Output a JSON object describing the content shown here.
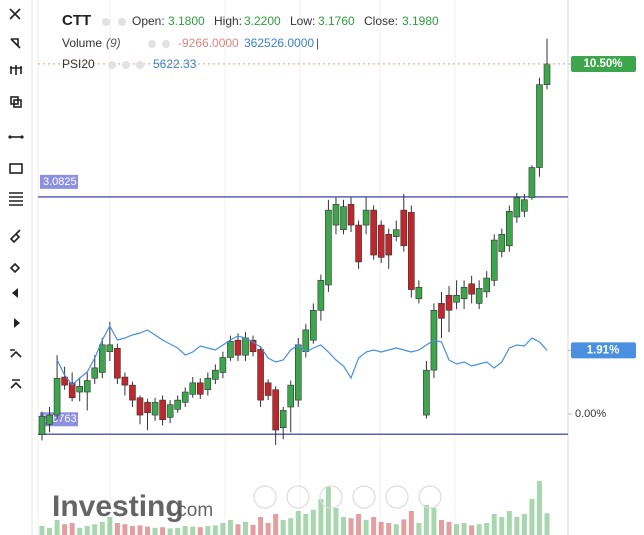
{
  "chart_data": {
    "type": "candlestick",
    "ylim": [
      2.867,
      3.2535
    ],
    "y2lim": [
      -0.93,
      12.42
    ],
    "y2ticks": [
      {
        "value": 10.5,
        "label": "10.50%"
      },
      {
        "value": 1.91,
        "label": "1.91%"
      },
      {
        "value": 0,
        "label": "0.00%"
      }
    ],
    "y3lim": [
      0,
      1000000
    ],
    "hlines": [
      3.0825,
      2.8763
    ],
    "hline_color": "#5b5fb8",
    "up_color": "#3da54c",
    "down_color": "#c0272d",
    "legend": {
      "ohlc": [
        {
          "label": "Open:",
          "value": "3.1800"
        },
        {
          "label": "High:",
          "value": "3.2200"
        },
        {
          "label": "Low:",
          "value": "3.1760"
        },
        {
          "label": "Close:",
          "value": "3.1980"
        }
      ],
      "volume_period": "(9)",
      "volume_values": [
        "-9266.0000",
        "362526.0000",
        "|"
      ],
      "psi_value": "5622.33"
    },
    "watermark": {
      "brand": "Investing",
      "suffix": ".com"
    },
    "series": [
      {
        "name": "CTT",
        "type": "candlestick",
        "open": [
          2.876,
          2.885,
          2.893,
          2.926,
          2.921,
          2.913,
          2.913,
          2.925,
          2.93,
          2.948,
          2.951,
          2.926,
          2.919,
          2.908,
          2.904,
          2.893,
          2.906,
          2.891,
          2.898,
          2.904,
          2.911,
          2.921,
          2.915,
          2.924,
          2.93,
          2.943,
          2.958,
          2.945,
          2.958,
          2.95,
          2.921,
          2.915,
          2.882,
          2.9,
          2.906,
          2.948,
          2.958,
          2.984,
          3.006,
          3.058,
          3.054,
          3.076,
          3.058,
          3.058,
          3.071,
          3.058,
          3.05,
          3.048,
          3.071,
          3.069,
          2.994,
          2.893,
          2.932,
          2.99,
          2.997,
          2.991,
          2.994,
          3.007,
          2.99,
          3.0,
          3.01,
          3.035,
          3.04,
          3.065,
          3.07,
          3.082,
          3.108,
          3.18
        ],
        "high": [
          2.896,
          2.9,
          2.945,
          2.935,
          2.93,
          2.925,
          2.93,
          2.945,
          2.96,
          2.974,
          2.955,
          2.93,
          2.922,
          2.91,
          2.907,
          2.908,
          2.91,
          2.906,
          2.91,
          2.917,
          2.926,
          2.925,
          2.93,
          2.937,
          2.948,
          2.962,
          2.964,
          2.965,
          2.962,
          2.953,
          2.924,
          2.918,
          2.9,
          2.923,
          2.96,
          2.972,
          2.99,
          3.015,
          3.08,
          3.082,
          3.08,
          3.082,
          3.062,
          3.082,
          3.075,
          3.062,
          3.055,
          3.062,
          3.085,
          3.075,
          3.01,
          2.94,
          2.99,
          3.0,
          3.005,
          3.01,
          3.01,
          3.014,
          3.01,
          3.018,
          3.05,
          3.055,
          3.075,
          3.086,
          3.085,
          3.11,
          3.186,
          3.22
        ],
        "low": [
          2.871,
          2.878,
          2.889,
          2.915,
          2.905,
          2.905,
          2.897,
          2.92,
          2.925,
          2.94,
          2.92,
          2.91,
          2.9,
          2.885,
          2.88,
          2.888,
          2.884,
          2.886,
          2.895,
          2.9,
          2.908,
          2.907,
          2.91,
          2.92,
          2.925,
          2.94,
          2.94,
          2.94,
          2.944,
          2.9,
          2.906,
          2.867,
          2.872,
          2.878,
          2.9,
          2.943,
          2.955,
          2.975,
          3.0,
          3.05,
          3.05,
          3.052,
          3.02,
          3.05,
          3.028,
          3.025,
          3.02,
          3.044,
          3.035,
          2.995,
          2.99,
          2.89,
          2.925,
          2.96,
          2.965,
          2.985,
          2.985,
          2.99,
          2.985,
          2.995,
          3.005,
          3.03,
          3.035,
          3.06,
          3.065,
          3.08,
          3.1,
          3.176
        ],
        "close": [
          2.892,
          2.893,
          2.925,
          2.919,
          2.908,
          2.918,
          2.923,
          2.934,
          2.954,
          2.954,
          2.925,
          2.919,
          2.906,
          2.893,
          2.895,
          2.904,
          2.889,
          2.902,
          2.906,
          2.913,
          2.921,
          2.911,
          2.925,
          2.932,
          2.943,
          2.957,
          2.945,
          2.96,
          2.948,
          2.906,
          2.91,
          2.88,
          2.897,
          2.919,
          2.954,
          2.967,
          2.984,
          3.01,
          3.071,
          3.076,
          3.074,
          3.058,
          3.026,
          3.071,
          3.032,
          3.03,
          3.032,
          3.054,
          3.04,
          3.002,
          3.004,
          2.932,
          2.984,
          2.977,
          2.984,
          2.997,
          3.004,
          2.998,
          3.003,
          3.012,
          3.045,
          3.05,
          3.07,
          3.082,
          3.08,
          3.108,
          3.18,
          3.198
        ]
      },
      {
        "name": "Volume",
        "type": "volume",
        "axis": "y3",
        "values": [
          150000,
          120000,
          250000,
          180000,
          200000,
          120000,
          150000,
          180000,
          220000,
          300000,
          200000,
          180000,
          150000,
          160000,
          140000,
          120000,
          130000,
          110000,
          120000,
          150000,
          140000,
          130000,
          150000,
          160000,
          200000,
          250000,
          180000,
          220000,
          170000,
          300000,
          200000,
          350000,
          250000,
          280000,
          400000,
          350000,
          420000,
          600000,
          800000,
          450000,
          300000,
          280000,
          350000,
          250000,
          300000,
          220000,
          200000,
          180000,
          260000,
          400000,
          200000,
          500000,
          450000,
          250000,
          220000,
          180000,
          200000,
          160000,
          180000,
          200000,
          350000,
          300000,
          400000,
          300000,
          350000,
          600000,
          900000,
          362526
        ]
      },
      {
        "name": "PSI20",
        "type": "line",
        "axis": "y2",
        "color": "#4a8fe0",
        "values": [
          null,
          null,
          1.62,
          1.17,
          0.87,
          1.08,
          1.26,
          1.68,
          2.22,
          2.64,
          2.22,
          2.28,
          2.37,
          2.43,
          2.52,
          2.37,
          2.22,
          2.1,
          1.98,
          1.77,
          1.86,
          2.04,
          1.98,
          1.92,
          2.07,
          2.22,
          2.34,
          2.28,
          2.16,
          2.01,
          1.68,
          1.56,
          1.62,
          1.92,
          2.07,
          1.86,
          1.98,
          2.07,
          1.86,
          1.62,
          1.44,
          1.08,
          1.68,
          1.86,
          1.92,
          1.86,
          1.92,
          1.98,
          1.92,
          1.86,
          1.92,
          2.07,
          2.22,
          2.16,
          1.62,
          1.5,
          1.56,
          1.44,
          1.5,
          1.56,
          1.38,
          1.56,
          1.98,
          2.07,
          2.04,
          2.28,
          2.16,
          1.91
        ]
      }
    ]
  }
}
